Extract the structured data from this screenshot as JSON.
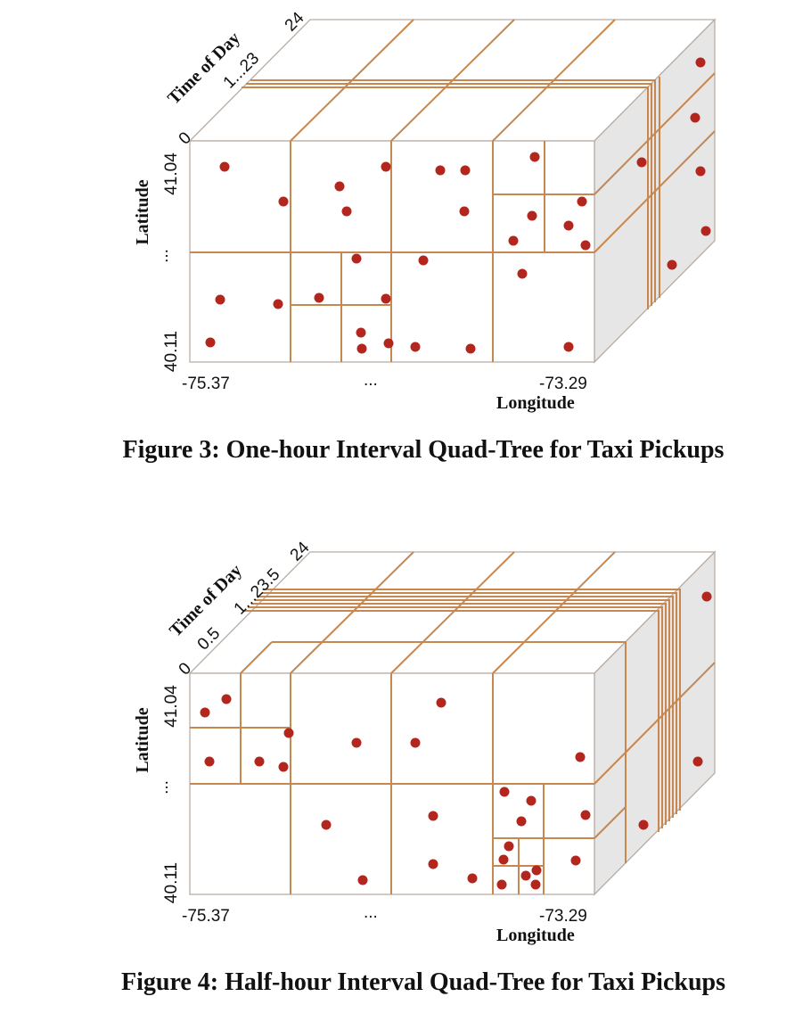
{
  "colors": {
    "grid": "#c8874e",
    "point": "#b3261e",
    "side_face": "#e6e6e6",
    "edge": "#b9ada3"
  },
  "figures": [
    {
      "caption": "Figure 3: One-hour Interval Quad-Tree for Taxi Pickups",
      "time_axis": {
        "title": "Time of Day",
        "start": "0",
        "mid": "1...23",
        "end": "24"
      },
      "lat_axis": {
        "title": "Latitude",
        "top": "41.04",
        "mid": "...",
        "bottom": "40.11"
      },
      "lon_axis": {
        "title": "Longitude",
        "left": "-75.37",
        "mid": "...",
        "right": "-73.29"
      }
    },
    {
      "caption": "Figure 4: Half-hour Interval Quad-Tree for Taxi Pickups",
      "time_axis": {
        "title": "Time of Day",
        "start": "0",
        "second": "0.5",
        "mid": "1...23.5",
        "end": "24"
      },
      "lat_axis": {
        "title": "Latitude",
        "top": "41.04",
        "mid": "...",
        "bottom": "40.11"
      },
      "lon_axis": {
        "title": "Longitude",
        "left": "-75.37",
        "mid": "...",
        "right": "-73.29"
      }
    }
  ]
}
